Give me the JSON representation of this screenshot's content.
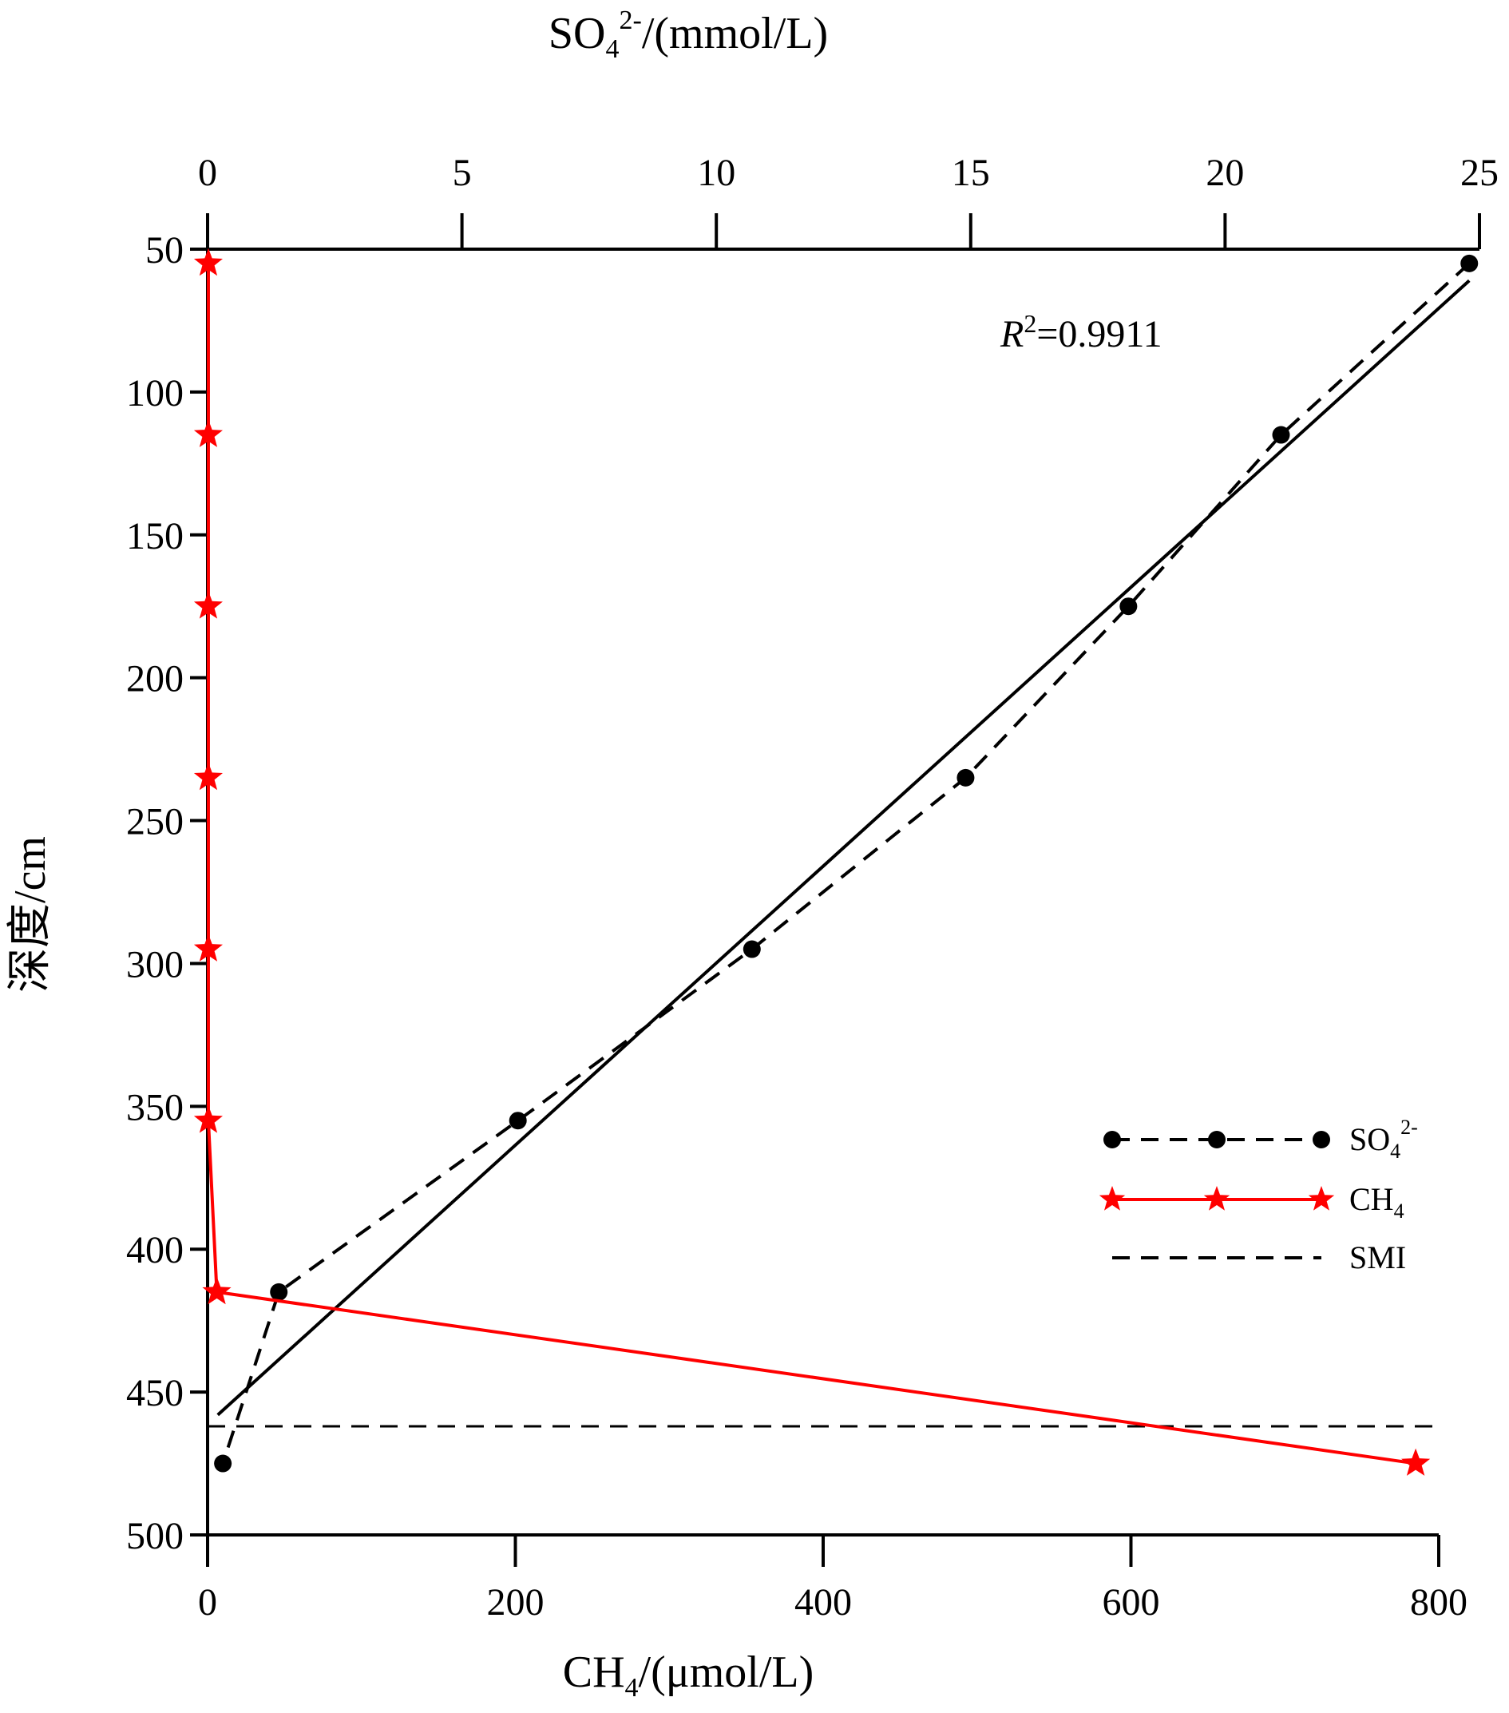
{
  "chart_data": {
    "type": "scatter",
    "y_axis": {
      "label": "深度/cm",
      "range": [
        50,
        500
      ],
      "ticks": [
        50,
        100,
        150,
        200,
        250,
        300,
        350,
        400,
        450,
        500
      ],
      "inverted": true
    },
    "x_axis_top": {
      "label_main": "SO",
      "label_sub": "4",
      "label_sup": "2-",
      "label_tail": "/(mmol/L)",
      "range": [
        0,
        25
      ],
      "ticks": [
        0,
        5,
        10,
        15,
        20,
        25
      ]
    },
    "x_axis_bottom": {
      "label_main": "CH",
      "label_sub": "4",
      "label_tail": "/(μmol/L)",
      "range": [
        0,
        800
      ],
      "ticks": [
        0,
        200,
        400,
        600,
        800
      ]
    },
    "series": [
      {
        "name": "SO42-",
        "legend_main": "SO",
        "legend_sub": "4",
        "legend_sup": "2-",
        "axis": "top",
        "color": "#000000",
        "line": "dashed",
        "marker": "circle",
        "points": [
          {
            "x": 24.8,
            "y": 55
          },
          {
            "x": 21.1,
            "y": 115
          },
          {
            "x": 18.1,
            "y": 175
          },
          {
            "x": 14.9,
            "y": 235
          },
          {
            "x": 10.7,
            "y": 295
          },
          {
            "x": 6.1,
            "y": 355
          },
          {
            "x": 1.4,
            "y": 415
          },
          {
            "x": 0.3,
            "y": 475
          }
        ]
      },
      {
        "name": "CH4",
        "legend_main": "CH",
        "legend_sub": "4",
        "axis": "bottom",
        "color": "#ff0000",
        "line": "solid",
        "marker": "star",
        "points": [
          {
            "x": 0.5,
            "y": 55
          },
          {
            "x": 0.5,
            "y": 115
          },
          {
            "x": 0.5,
            "y": 175
          },
          {
            "x": 0.5,
            "y": 235
          },
          {
            "x": 0.5,
            "y": 295
          },
          {
            "x": 0.5,
            "y": 355
          },
          {
            "x": 6,
            "y": 415
          },
          {
            "x": 785,
            "y": 475
          }
        ]
      }
    ],
    "fit_line": {
      "axis": "top",
      "color": "#000000",
      "from": {
        "x": 0.2,
        "y": 458
      },
      "to": {
        "x": 24.8,
        "y": 61
      },
      "r2_label_italic": "R",
      "r2_label_sup": "2",
      "r2_label_tail": "=0.9911"
    },
    "smi_line": {
      "name": "SMI",
      "depth": 462,
      "color": "#000000",
      "style": "dashed",
      "x_range_bottom": [
        0,
        800
      ]
    },
    "legend": {
      "position": "right-lower",
      "entries": [
        "SO42-",
        "CH4",
        "SMI"
      ]
    },
    "grid": false
  }
}
